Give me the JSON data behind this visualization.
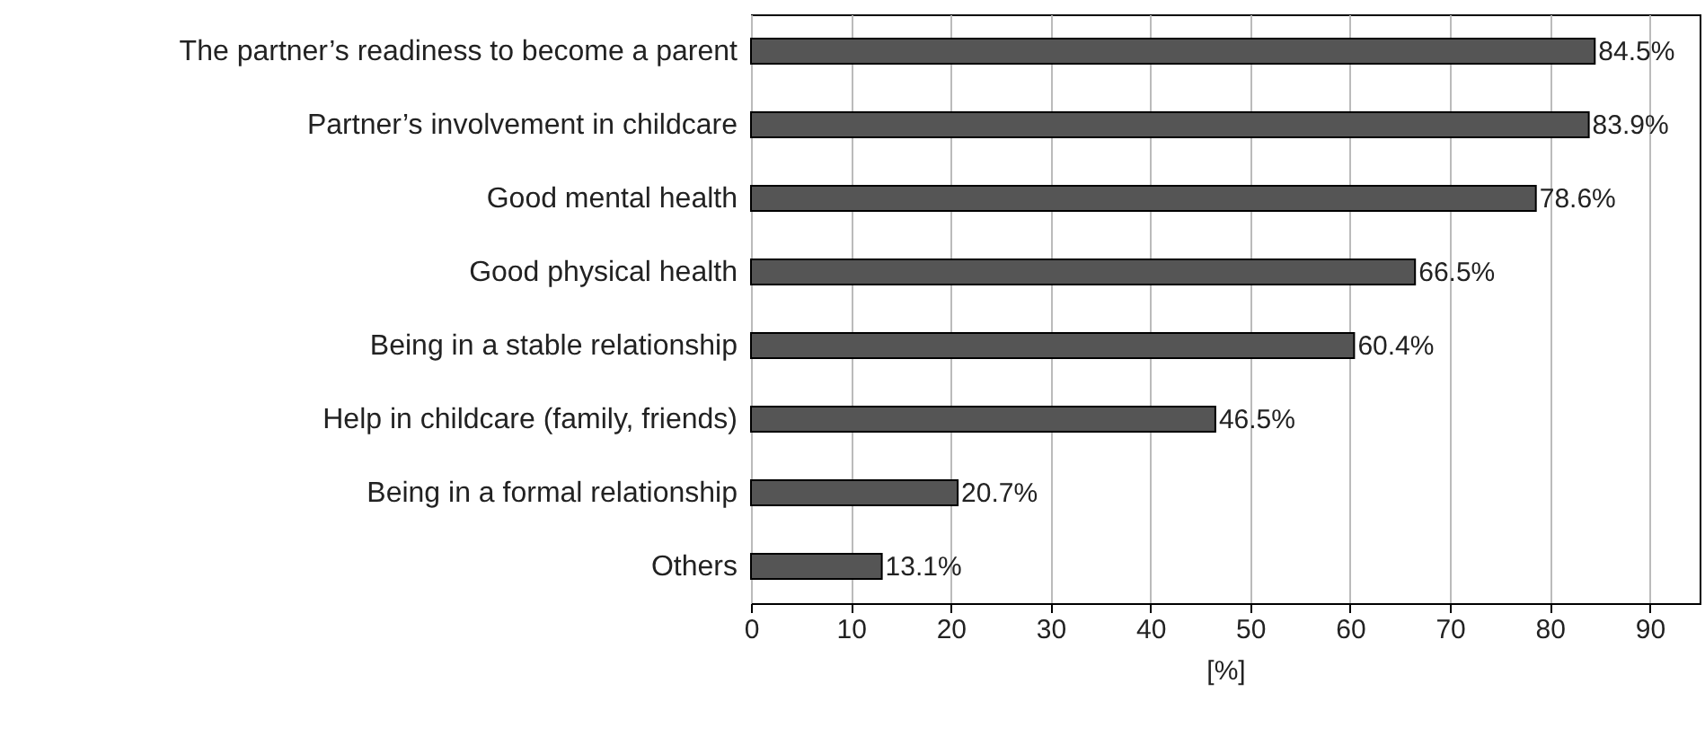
{
  "chart_data": {
    "type": "bar",
    "orientation": "horizontal",
    "xlabel": "[%]",
    "categories": [
      "The partner’s readiness to become a parent",
      "Partner’s involvement in childcare",
      "Good mental health",
      "Good physical health",
      "Being in a stable relationship",
      "Help in childcare (family, friends)",
      "Being in a formal relationship",
      "Others"
    ],
    "values": [
      84.5,
      83.9,
      78.6,
      66.5,
      60.4,
      46.5,
      20.7,
      13.1
    ],
    "value_labels": [
      "84.5%",
      "83.9%",
      "78.6%",
      "66.5%",
      "60.4%",
      "46.5%",
      "20.7%",
      "13.1%"
    ],
    "color": "#555555",
    "xlim": [
      0,
      95
    ],
    "xticks": [
      0,
      10,
      20,
      30,
      40,
      50,
      60,
      70,
      80,
      90
    ],
    "grid": "x"
  }
}
